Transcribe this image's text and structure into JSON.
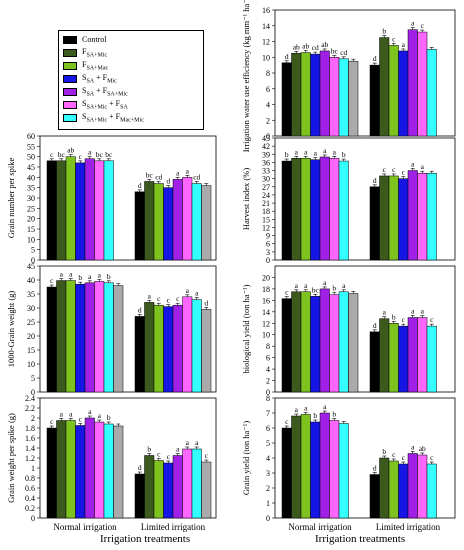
{
  "legend": [
    {
      "name": "Control",
      "label": "Control",
      "color": "#000000"
    },
    {
      "name": "F SA+Mic",
      "label": "F",
      "sub": "SA+Mic",
      "color": "#3d5a1e"
    },
    {
      "name": "F SA+Mac",
      "label": "F",
      "sub": "SA+Mac",
      "color": "#7dc21e"
    },
    {
      "name": "S SA + F Mic",
      "label": "S",
      "sub": "SA",
      "mid": " + F",
      "sub2": "Mic",
      "color": "#1515e6"
    },
    {
      "name": "S SA + F SA+Mic",
      "label": "S",
      "sub": "SA",
      "mid": " + F",
      "sub2": "SA+Mic",
      "color": "#a020e6"
    },
    {
      "name": "S SA+Mic + F SA",
      "label": "S",
      "sub": "SA+Mic",
      "mid": " + F",
      "sub2": "SA",
      "color": "#ff66ff"
    },
    {
      "name": "S SA+Mic + F Mac+Mic",
      "label": "S",
      "sub": "SA+Mic",
      "mid": " + F",
      "sub2": "Mac+Mic",
      "color": "#33ffff"
    },
    {
      "name": "Gray",
      "label": "",
      "color": "#aaaaaa"
    }
  ],
  "x_axis_label": "Irrigation treatments",
  "chart_data": [
    {
      "type": "bar",
      "id": "grain-number",
      "ylabel": "Grain number per spike",
      "ylim": [
        0,
        60
      ],
      "yticks": [
        0,
        5,
        10,
        15,
        20,
        25,
        30,
        35,
        40,
        45,
        50,
        55,
        60
      ],
      "categories": [
        "Normal irrigation",
        "Limited irrigation"
      ],
      "values": [
        [
          48,
          48,
          50,
          47,
          49,
          48,
          48,
          null
        ],
        [
          33,
          38,
          37,
          35,
          39,
          40,
          37,
          36
        ]
      ],
      "letters": [
        [
          "c",
          "bc",
          "ab",
          "c",
          "a",
          "bc",
          "bc",
          ""
        ],
        [
          "d",
          "bc",
          "cd",
          "d",
          "a",
          "a",
          "cd",
          ""
        ]
      ]
    },
    {
      "type": "bar",
      "id": "grain-weight-1000",
      "ylabel": "1000-Grain weight (g)",
      "ylim": [
        0,
        45
      ],
      "yticks": [
        0,
        5,
        10,
        15,
        20,
        25,
        30,
        35,
        40,
        45
      ],
      "categories": [
        "Normal irrigation",
        "Limited irrigation"
      ],
      "values": [
        [
          37.5,
          39.8,
          39.8,
          38.5,
          39,
          39.5,
          39,
          38
        ],
        [
          27,
          32,
          31,
          30.5,
          31,
          34,
          33,
          29.5
        ]
      ],
      "letters": [
        [
          "c",
          "a",
          "a",
          "b",
          "a",
          "a",
          "b",
          ""
        ],
        [
          "d",
          "a",
          "c",
          "c",
          "c",
          "a",
          "a",
          "d"
        ]
      ]
    },
    {
      "type": "bar",
      "id": "grain-weight-spike",
      "ylabel": "Grain weight per spike (g)",
      "ylim": [
        0,
        2.4
      ],
      "yticks": [
        0,
        0.2,
        0.4,
        0.6,
        0.8,
        1.0,
        1.2,
        1.4,
        1.6,
        1.8,
        2.0,
        2.2,
        2.4
      ],
      "categories": [
        "Normal irrigation",
        "Limited irrigation"
      ],
      "values": [
        [
          1.8,
          1.95,
          1.95,
          1.85,
          2.0,
          1.92,
          1.88,
          1.84
        ],
        [
          0.88,
          1.25,
          1.15,
          1.1,
          1.25,
          1.38,
          1.38,
          1.12
        ]
      ],
      "letters": [
        [
          "c",
          "a",
          "a",
          "c",
          "a",
          "a",
          "b",
          ""
        ],
        [
          "d",
          "b",
          "c",
          "c",
          "a",
          "a",
          "a",
          "c"
        ]
      ]
    },
    {
      "type": "bar",
      "id": "iwue",
      "ylabel": "Irrigation water use efficiency (kg mm⁻¹ ha⁻¹)",
      "ylim": [
        0,
        16
      ],
      "yticks": [
        0,
        2,
        4,
        6,
        8,
        10,
        12,
        14,
        16
      ],
      "categories": [
        "Normal irrigation",
        "Limited irrigation"
      ],
      "values": [
        [
          9.3,
          10.5,
          10.6,
          10.4,
          10.8,
          10,
          9.8,
          9.5
        ],
        [
          9,
          12.5,
          11.5,
          10.8,
          13.5,
          13.2,
          11,
          null
        ]
      ],
      "letters": [
        [
          "d",
          "ab",
          "ab",
          "cd",
          "ab",
          "bc",
          "cd",
          ""
        ],
        [
          "d",
          "b",
          "c",
          "a",
          "a",
          "c",
          "",
          ""
        ]
      ]
    },
    {
      "type": "bar",
      "id": "harvest-index",
      "ylabel": "Harvest index (%)",
      "ylim": [
        0,
        45
      ],
      "yticks": [
        0,
        3,
        6,
        9,
        12,
        15,
        18,
        21,
        24,
        27,
        30,
        33,
        36,
        39,
        42,
        45
      ],
      "categories": [
        "Normal irrigation",
        "Limited irrigation"
      ],
      "values": [
        [
          36.5,
          37.5,
          37.5,
          37,
          38,
          37.5,
          36.5,
          null
        ],
        [
          27,
          31,
          31,
          30,
          33,
          32,
          32,
          null
        ]
      ],
      "letters": [
        [
          "b",
          "a",
          "a",
          "a",
          "a",
          "a",
          "b",
          ""
        ],
        [
          "d",
          "c",
          "c",
          "c",
          "a",
          "a",
          "",
          ""
        ]
      ]
    },
    {
      "type": "bar",
      "id": "biological-yield",
      "ylabel": "biological yield (ton ha⁻¹)",
      "ylim": [
        0,
        22
      ],
      "yticks": [
        0,
        2,
        4,
        6,
        8,
        10,
        12,
        14,
        16,
        18,
        20
      ],
      "categories": [
        "Normal irrigation",
        "Limited irrigation"
      ],
      "values": [
        [
          16.3,
          17.5,
          17.5,
          16.7,
          18,
          17,
          17.5,
          17.2
        ],
        [
          10.5,
          12.8,
          12,
          11.5,
          13,
          13,
          11.5,
          null
        ]
      ],
      "letters": [
        [
          "c",
          "a",
          "a",
          "bc",
          "a",
          "b",
          "a",
          ""
        ],
        [
          "d",
          "a",
          "b",
          "c",
          "a",
          "a",
          "c",
          ""
        ]
      ]
    },
    {
      "type": "bar",
      "id": "grain-yield",
      "ylabel": "Grain yield (ton ha⁻¹)",
      "ylim": [
        0,
        8
      ],
      "yticks": [
        0,
        1,
        2,
        3,
        4,
        5,
        6,
        7,
        8
      ],
      "categories": [
        "Normal irrigation",
        "Limited irrigation"
      ],
      "values": [
        [
          6,
          6.8,
          6.9,
          6.4,
          7,
          6.5,
          6.3,
          null
        ],
        [
          2.9,
          4,
          3.8,
          3.6,
          4.3,
          4.2,
          3.6,
          null
        ]
      ],
      "letters": [
        [
          "c",
          "a",
          "a",
          "b",
          "a",
          "b",
          "",
          ""
        ],
        [
          "d",
          "b",
          "c",
          "c",
          "a",
          "ab",
          "c",
          ""
        ]
      ]
    }
  ]
}
